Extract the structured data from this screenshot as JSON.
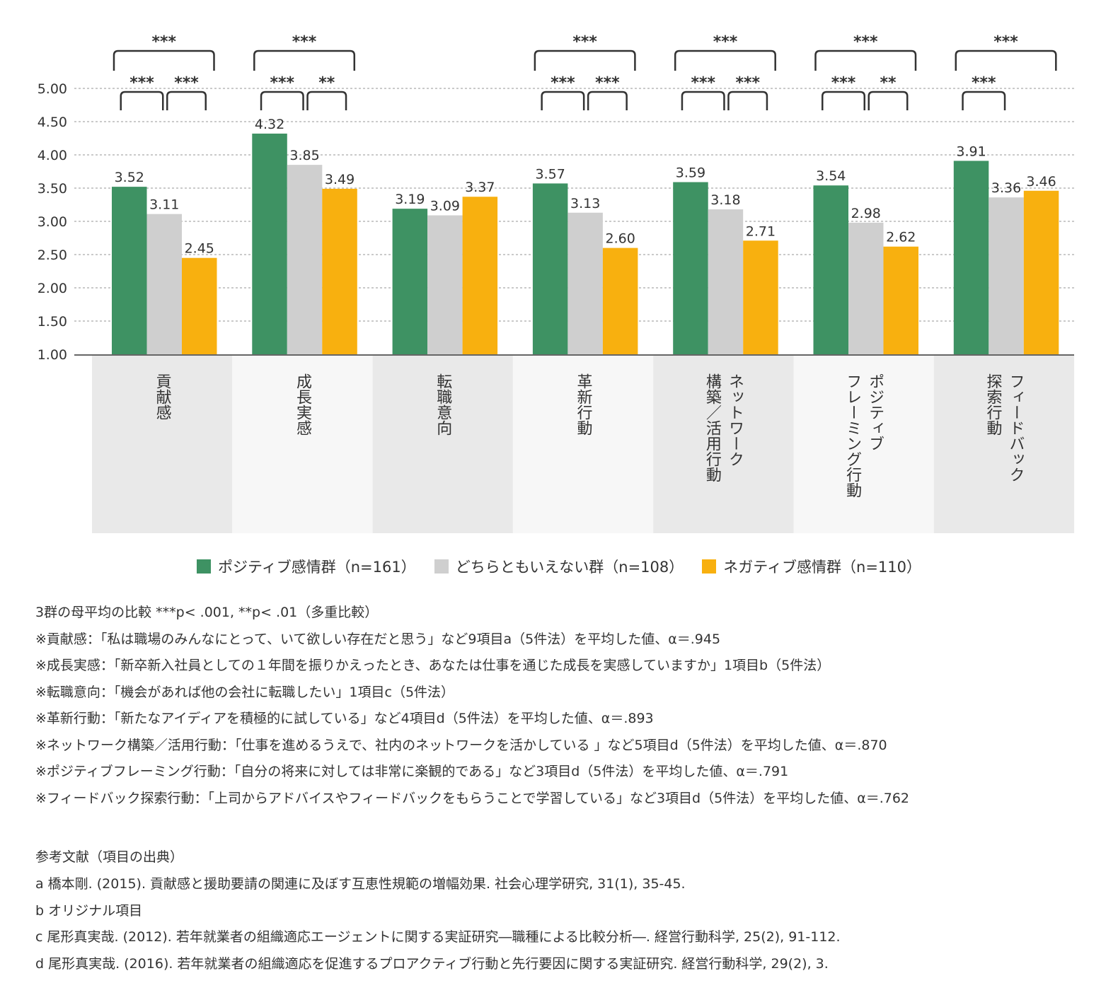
{
  "chart_data": {
    "type": "bar",
    "categories": [
      "貢献感",
      "成長実感",
      "転職意向",
      "革新行動",
      "ネットワーク\n構築／活用行動",
      "ポジティブ\nフレーミング行動",
      "フィードバック\n探索行動"
    ],
    "series": [
      {
        "name": "ポジティブ感情群（n=161）",
        "color": "#3e9263",
        "values": [
          3.52,
          4.32,
          3.19,
          3.57,
          3.59,
          3.54,
          3.91
        ]
      },
      {
        "name": "どちらともいえない群（n=108）",
        "color": "#cfcfcf",
        "values": [
          3.11,
          3.85,
          3.09,
          3.13,
          3.18,
          2.98,
          3.36
        ]
      },
      {
        "name": "ネガティブ感情群（n=110）",
        "color": "#f8b00f",
        "values": [
          2.45,
          3.49,
          3.37,
          2.6,
          2.71,
          2.62,
          3.46
        ]
      }
    ],
    "value_labels": [
      [
        "3.52",
        "3.11",
        "2.45"
      ],
      [
        "4.32",
        "3.85",
        "3.49"
      ],
      [
        "3.19",
        "3.09",
        "3.37"
      ],
      [
        "3.57",
        "3.13",
        "2.60"
      ],
      [
        "3.59",
        "3.18",
        "2.71"
      ],
      [
        "3.54",
        "2.98",
        "2.62"
      ],
      [
        "3.91",
        "3.36",
        "3.46"
      ]
    ],
    "ylim": [
      1.0,
      5.0
    ],
    "yticks": [
      "1.00",
      "1.50",
      "2.00",
      "2.50",
      "3.00",
      "3.50",
      "4.00",
      "4.50",
      "5.00"
    ],
    "grid": true,
    "legend_placement": "bottom",
    "significance": [
      {
        "all": "***",
        "pair12": "***",
        "pair23": "***"
      },
      {
        "all": "***",
        "pair12": "***",
        "pair23": "**"
      },
      {
        "all": "",
        "pair12": "",
        "pair23": ""
      },
      {
        "all": "***",
        "pair12": "***",
        "pair23": "***"
      },
      {
        "all": "***",
        "pair12": "***",
        "pair23": "***"
      },
      {
        "all": "***",
        "pair12": "***",
        "pair23": "**"
      },
      {
        "all": "***",
        "pair12": "***",
        "pair23": ""
      }
    ]
  },
  "notes": [
    "3群の母平均の比較  ***p< .001,  **p< .01（多重比較）",
    "※貢献感：「私は職場のみんなにとって、いて欲しい存在だと思う」など9項目a（5件法）を平均した値、α＝.945",
    "※成長実感：「新卒新入社員としての１年間を振りかえったとき、あなたは仕事を通じた成長を実感していますか」1項目b（5件法）",
    "※転職意向：「機会があれば他の会社に転職したい」1項目c（5件法）",
    "※革新行動：「新たなアイディアを積極的に試している」など4項目d（5件法）を平均した値、α＝.893",
    "※ネットワーク構築／活用行動：「仕事を進めるうえで、社内のネットワークを活かしている 」など5項目d（5件法）を平均した値、α＝.870",
    "※ポジティブフレーミング行動：「自分の将来に対しては非常に楽観的である」など3項目d（5件法）を平均した値、α＝.791",
    "※フィードバック探索行動：「上司からアドバイスやフィードバックをもらうことで学習している」など3項目d（5件法）を平均した値、α＝.762"
  ],
  "references": [
    "参考文献（項目の出典）",
    "a 橋本剛. (2015). 貢献感と援助要請の関連に及ぼす互恵性規範の増幅効果. 社会心理学研究, 31(1), 35-45.",
    "b オリジナル項目",
    "c 尾形真実哉. (2012). 若年就業者の組織適応エージェントに関する実証研究―職種による比較分析―. 経営行動科学, 25(2), 91-112.",
    "d 尾形真実哉. (2016). 若年就業者の組織適応を促進するプロアクティブ行動と先行要因に関する実証研究. 経営行動科学, 29(2), 3."
  ]
}
